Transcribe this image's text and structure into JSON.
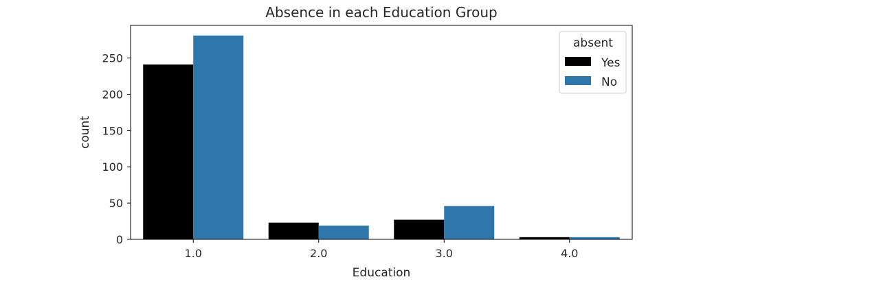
{
  "chart_data": {
    "type": "bar",
    "title": "Absence in each Education Group",
    "xlabel": "Education",
    "ylabel": "count",
    "categories": [
      "1.0",
      "2.0",
      "3.0",
      "4.0"
    ],
    "series": [
      {
        "name": "Yes",
        "color": "#000000",
        "values": [
          241,
          23,
          27,
          3
        ]
      },
      {
        "name": "No",
        "color": "#2f76ab",
        "values": [
          281,
          19,
          46,
          3
        ]
      }
    ],
    "ylim": [
      0,
      295
    ],
    "yticks": [
      0,
      50,
      100,
      150,
      200,
      250
    ],
    "ytick_labels": [
      "0",
      "50",
      "100",
      "150",
      "200",
      "250"
    ],
    "legend": {
      "title": "absent",
      "placement": "top-right"
    },
    "grid": false
  }
}
